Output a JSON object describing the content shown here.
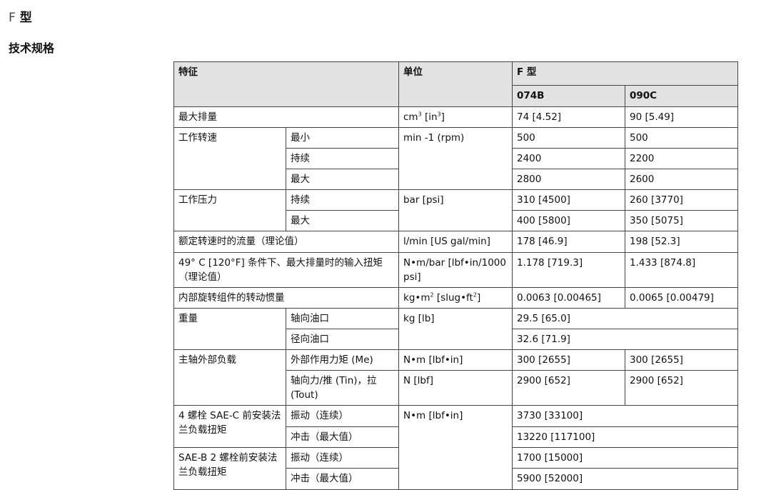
{
  "page": {
    "title_prefix": "F",
    "title_suffix": "型",
    "section": "技术规格"
  },
  "header": {
    "feature": "特征",
    "unit": "单位",
    "model": "F 型",
    "col1": "074B",
    "col2": "090C"
  },
  "rows": {
    "disp": {
      "label": "最大排量",
      "unit_base": "cm",
      "unit_mid": " [in",
      "unit_end": "]",
      "sup": "3",
      "v1": "74 [4.52]",
      "v2": "90 [5.49]"
    },
    "speed": {
      "label": "工作转速",
      "unit": "min -1 (rpm)",
      "min": "最小",
      "cont": "持续",
      "max": "最大",
      "min1": "500",
      "min2": "500",
      "cont1": "2400",
      "cont2": "2200",
      "max1": "2800",
      "max2": "2600"
    },
    "press": {
      "label": "工作压力",
      "unit": "bar [psi]",
      "cont": "持续",
      "max": "最大",
      "cont1": "310 [4500]",
      "cont2": "260 [3770]",
      "max1": "400 [5800]",
      "max2": "350 [5075]"
    },
    "flow": {
      "label": "额定转速时的流量（理论值）",
      "unit": "l/min [US gal/min]",
      "v1": "178 [46.9]",
      "v2": "198 [52.3]"
    },
    "torque": {
      "label": "49° C [120°F] 条件下、最大排量时的输入扭矩（理论值）",
      "unit": "N•m/bar [lbf•in/1000 psi]",
      "v1": "1.178 [719.3]",
      "v2": "1.433 [874.8]"
    },
    "inertia": {
      "label": "内部旋转组件的转动惯量",
      "unit_a": "kg•m",
      "unit_b": " [slug•ft",
      "unit_c": "]",
      "sup": "2",
      "v1": "0.0063 [0.00465]",
      "v2": "0.0065 [0.00479]"
    },
    "weight": {
      "label": "重量",
      "unit": "kg [lb]",
      "axial": "轴向油口",
      "radial": "径向油口",
      "axial_v": "29.5 [65.0]",
      "radial_v": "32.6 [71.9]"
    },
    "shaft": {
      "label": "主轴外部负载",
      "moment": "外部作用力矩 (Me)",
      "moment_unit": "N•m [lbf•in]",
      "moment1": "300 [2655]",
      "moment2": "300 [2655]",
      "axial": "轴向力/推 (Tin)，拉 (Tout)",
      "axial_unit": "N [lbf]",
      "axial1": "2900 [652]",
      "axial2": "2900 [652]"
    },
    "saec": {
      "label": "4 螺栓 SAE-C 前安装法兰负载扭矩",
      "unit": "N•m [lbf•in]",
      "vib": "振动（连续）",
      "shock": "冲击（最大值）",
      "vib_v": "3730 [33100]",
      "shock_v": "13220 [117100]"
    },
    "saeb": {
      "label": "SAE-B 2 螺栓前安装法兰负载扭矩",
      "vib": "振动（连续）",
      "shock": "冲击（最大值）",
      "vib_v": "1700 [15000]",
      "shock_v": "5900 [52000]"
    }
  }
}
